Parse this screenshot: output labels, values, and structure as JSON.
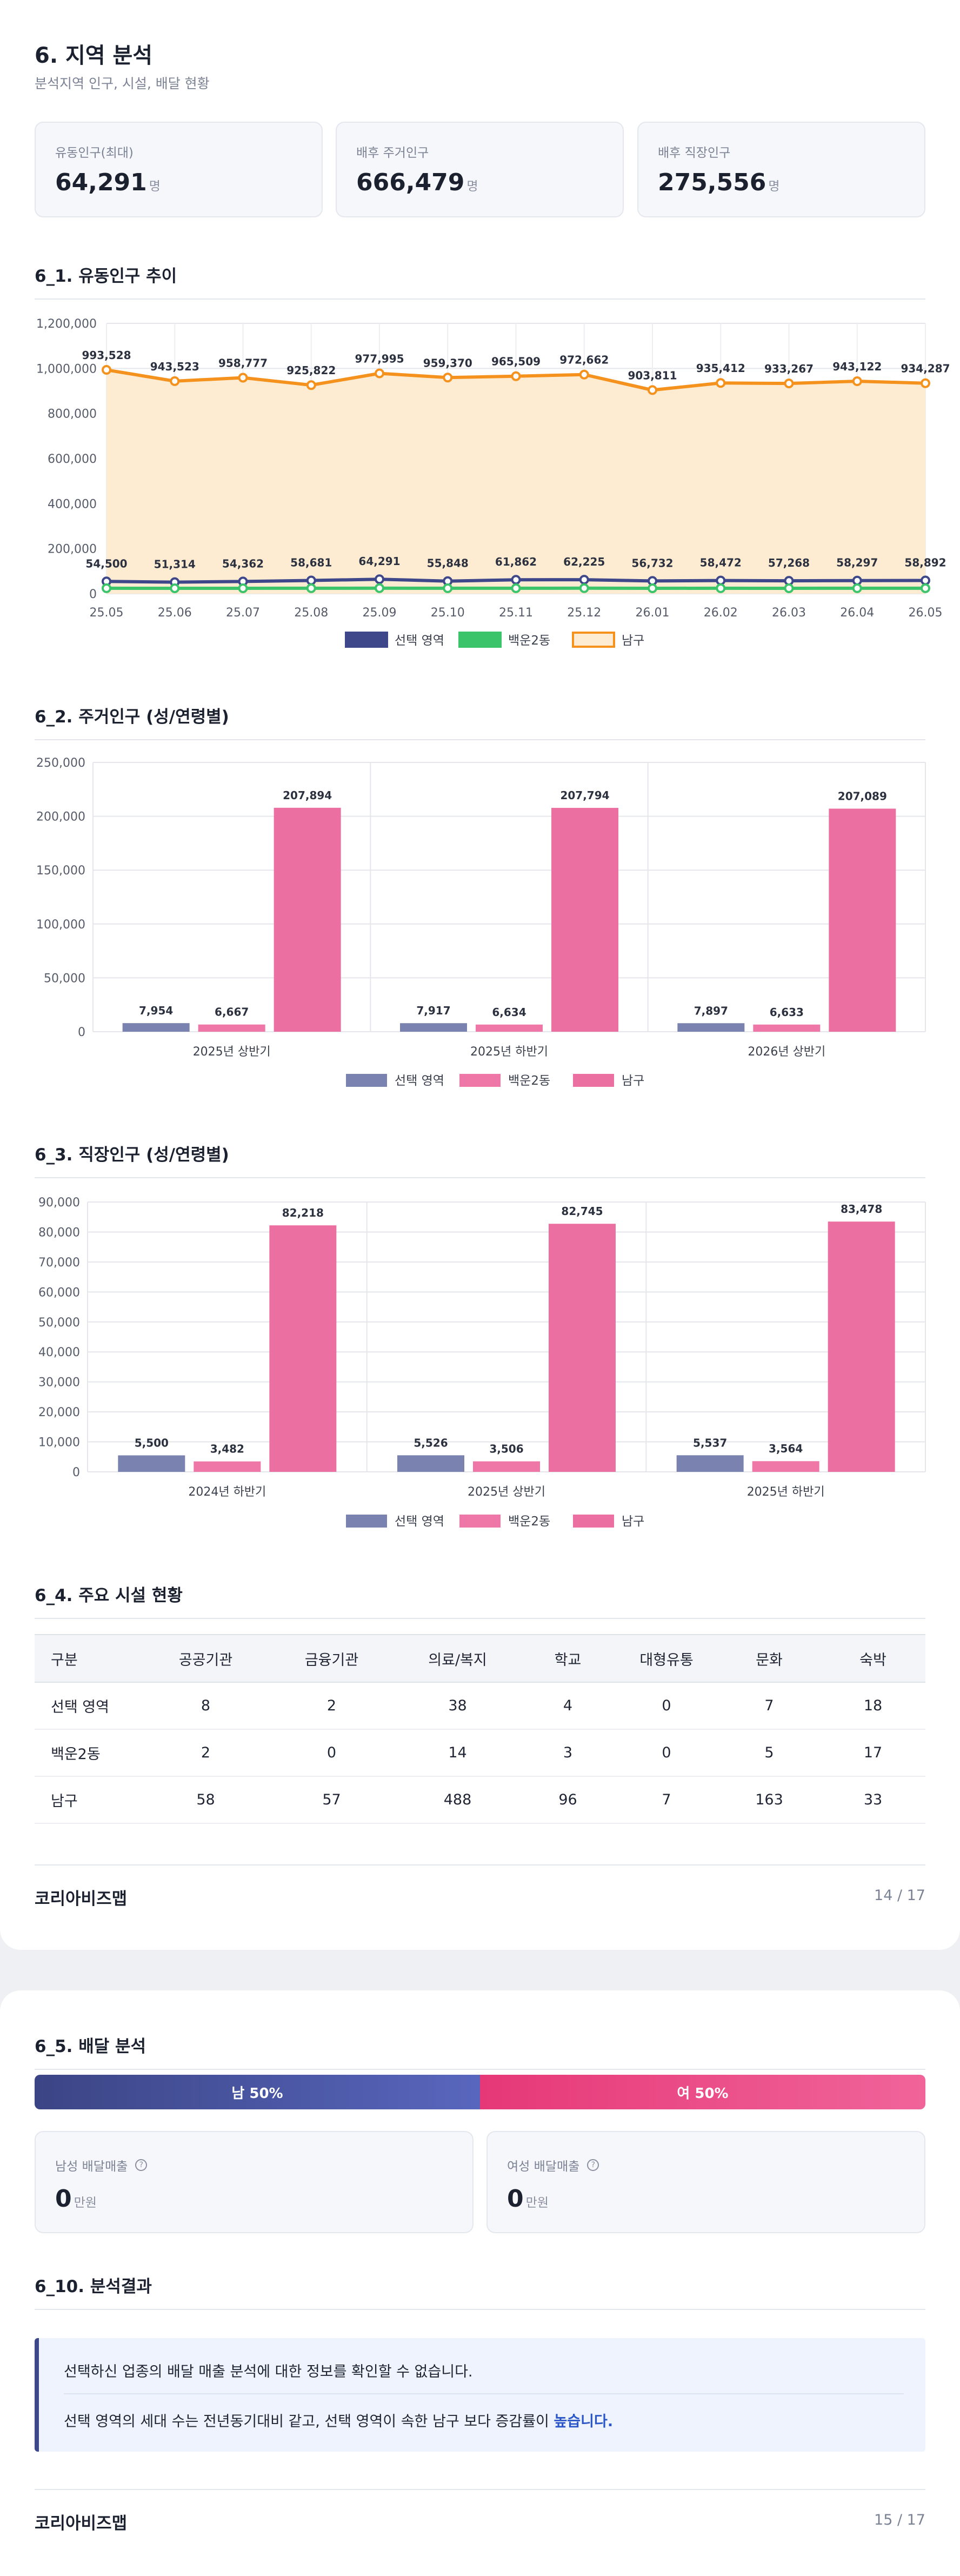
{
  "page1": {
    "title": "6. 지역 분석",
    "subtitle": "분석지역 인구, 시설, 배달 현황",
    "stats": [
      {
        "label": "유동인구(최대)",
        "value": "64,291",
        "unit": "명"
      },
      {
        "label": "배후 주거인구",
        "value": "666,479",
        "unit": "명"
      },
      {
        "label": "배후 직장인구",
        "value": "275,556",
        "unit": "명"
      }
    ],
    "sections": {
      "s61": "6_1. 유동인구 추이",
      "s62": "6_2. 주거인구 (성/연령별)",
      "s63": "6_3. 직장인구 (성/연령별)",
      "s64": "6_4. 주요 시설 현황"
    },
    "facilities": {
      "headers": [
        "구분",
        "공공기관",
        "금융기관",
        "의료/복지",
        "학교",
        "대형유통",
        "문화",
        "숙박"
      ],
      "rows": [
        [
          "선택 영역",
          "8",
          "2",
          "38",
          "4",
          "0",
          "7",
          "18"
        ],
        [
          "백운2동",
          "2",
          "0",
          "14",
          "3",
          "0",
          "5",
          "17"
        ],
        [
          "남구",
          "58",
          "57",
          "488",
          "96",
          "7",
          "163",
          "33"
        ]
      ]
    },
    "footer": {
      "brand": "코리아비즈맵",
      "page": "14 / 17"
    }
  },
  "page2": {
    "sections": {
      "s65": "6_5. 배달 분석",
      "s610": "6_10. 분석결과"
    },
    "gender": {
      "male_label": "남 50%",
      "female_label": "여 50%",
      "male_pct": 50,
      "female_pct": 50
    },
    "sales": [
      {
        "label": "남성 배달매출",
        "value": "0",
        "unit": "만원",
        "icon": "question-circle-icon"
      },
      {
        "label": "여성 배달매출",
        "value": "0",
        "unit": "만원",
        "icon": "question-circle-icon"
      }
    ],
    "results": {
      "line1": "선택하신 업종의 배달 매출 분석에 대한 정보를 확인할 수 없습니다.",
      "line2_pre": "선택 영역의 세대 수는 전년동기대비 같고, 선택 영역이 속한 남구 보다 증감률이 ",
      "line2_hl": "높습니다."
    },
    "footer": {
      "brand": "코리아비즈맵",
      "page": "15 / 17"
    }
  },
  "chart_data": [
    {
      "type": "line",
      "x": [
        "25.05",
        "25.06",
        "25.07",
        "25.08",
        "25.09",
        "25.10",
        "25.11",
        "25.12",
        "26.01",
        "26.02",
        "26.03",
        "26.04",
        "26.05"
      ],
      "ylim": [
        0,
        1200000
      ],
      "yticks": [
        "0",
        "200,000",
        "400,000",
        "600,000",
        "800,000",
        "1,000,000",
        "1,200,000"
      ],
      "series": [
        {
          "name": "선택 영역",
          "color": "#3d4789",
          "values": [
            54500,
            51314,
            54362,
            58681,
            64291,
            55848,
            61862,
            62225,
            56732,
            58472,
            57268,
            58297,
            58892
          ],
          "labels": [
            "54,500",
            "51,314",
            "54,362",
            "58,681",
            "64,291",
            "55,848",
            "61,862",
            "62,225",
            "56,732",
            "58,472",
            "57,268",
            "58,297",
            "58,892"
          ]
        },
        {
          "name": "백운2동",
          "color": "#3bc46a",
          "values": [
            24200,
            24000,
            24100,
            24300,
            24600,
            24200,
            24400,
            24500,
            24100,
            24200,
            24100,
            24200,
            24300
          ],
          "labels": []
        },
        {
          "name": "남구",
          "color": "#f5921e",
          "fill": "#fdebd2",
          "values": [
            993528,
            943523,
            958777,
            925822,
            977995,
            959370,
            965509,
            972662,
            903811,
            935412,
            933267,
            943122,
            934287
          ],
          "labels": [
            "993,528",
            "943,523",
            "958,777",
            "925,822",
            "977,995",
            "959,370",
            "965,509",
            "972,662",
            "903,811",
            "935,412",
            "933,267",
            "943,122",
            "934,287"
          ]
        }
      ],
      "legend": "bottom",
      "grid": true
    },
    {
      "type": "bar",
      "categories": [
        "2025년 상반기",
        "2025년 하반기",
        "2026년 상반기"
      ],
      "ylim": [
        0,
        250000
      ],
      "yticks": [
        "0",
        "50,000",
        "100,000",
        "150,000",
        "200,000",
        "250,000"
      ],
      "series": [
        {
          "name": "선택 영역",
          "color": "#7a83b0",
          "values": [
            7954,
            7917,
            7897
          ],
          "labels": [
            "7,954",
            "7,917",
            "7,897"
          ]
        },
        {
          "name": "백운2동",
          "color": "#ef77a7",
          "values": [
            6667,
            6634,
            6633
          ],
          "labels": [
            "6,667",
            "6,634",
            "6,633"
          ]
        },
        {
          "name": "남구",
          "color": "#ec6fa1",
          "values": [
            207894,
            207794,
            207089
          ],
          "labels": [
            "207,894",
            "207,794",
            "207,089"
          ]
        }
      ],
      "legend": "bottom",
      "grid": true
    },
    {
      "type": "bar",
      "categories": [
        "2024년 하반기",
        "2025년 상반기",
        "2025년 하반기"
      ],
      "ylim": [
        0,
        90000
      ],
      "yticks": [
        "0",
        "10,000",
        "20,000",
        "30,000",
        "40,000",
        "50,000",
        "60,000",
        "70,000",
        "80,000",
        "90,000"
      ],
      "series": [
        {
          "name": "선택 영역",
          "color": "#7a83b0",
          "values": [
            5500,
            5526,
            5537
          ],
          "labels": [
            "5,500",
            "5,526",
            "5,537"
          ]
        },
        {
          "name": "백운2동",
          "color": "#ef77a7",
          "values": [
            3482,
            3506,
            3564
          ],
          "labels": [
            "3,482",
            "3,506",
            "3,564"
          ]
        },
        {
          "name": "남구",
          "color": "#ec6fa1",
          "values": [
            82218,
            82745,
            83478
          ],
          "labels": [
            "82,218",
            "82,745",
            "83,478"
          ]
        }
      ],
      "legend": "bottom",
      "grid": true
    }
  ]
}
